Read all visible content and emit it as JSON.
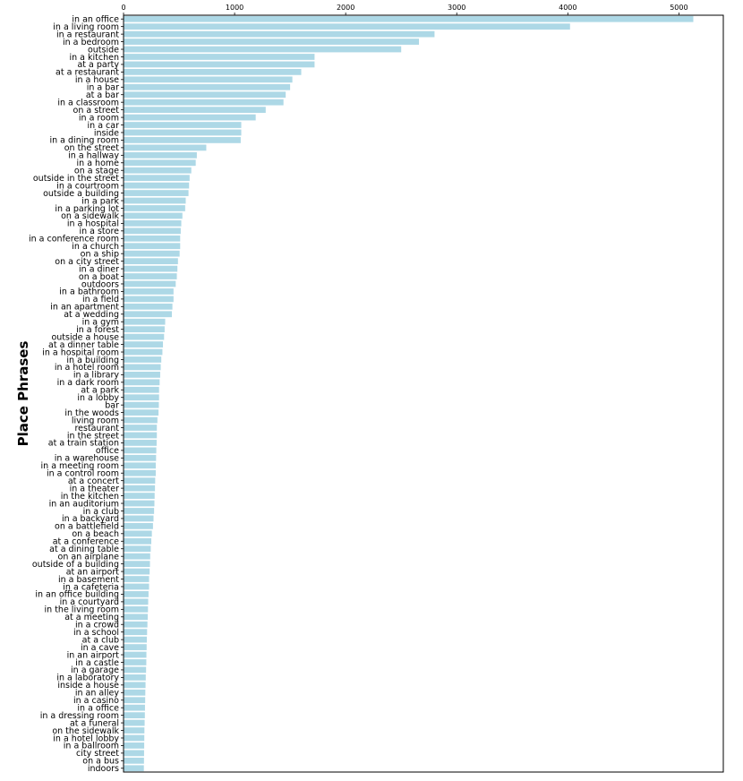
{
  "chart_data": {
    "type": "bar",
    "orientation": "horizontal",
    "title": "",
    "xlabel": "",
    "ylabel": "Place Phrases",
    "xlim": [
      0,
      5400
    ],
    "xticks": [
      0,
      1000,
      2000,
      3000,
      4000,
      5000
    ],
    "x_axis_position": "top",
    "grid": false,
    "bar_color": "#add8e6",
    "categories": [
      "in an office",
      "in a living room",
      "in a restaurant",
      "in a bedroom",
      "outside",
      "in a kitchen",
      "at a party",
      "at a restaurant",
      "in a house",
      "in a bar",
      "at a bar",
      "in a classroom",
      "on a street",
      "in a room",
      "in a car",
      "inside",
      "in a dining room",
      "on the street",
      "in a hallway",
      "in a home",
      "on a stage",
      "outside in the street",
      "in a courtroom",
      "outside a building",
      "in a park",
      "in a parking lot",
      "on a sidewalk",
      "in a hospital",
      "in a store",
      "in a conference room",
      "in a church",
      "on a ship",
      "on a city street",
      "in a diner",
      "on a boat",
      "outdoors",
      "in a bathroom",
      "in a field",
      "in an apartment",
      "at a wedding",
      "in a gym",
      "in a forest",
      "outside a house",
      "at a dinner table",
      "in a hospital room",
      "in a building",
      "in a hotel room",
      "in a library",
      "in a dark room",
      "at a park",
      "in a lobby",
      "bar",
      "in the woods",
      "living room",
      "restaurant",
      "in the street",
      "at a train station",
      "office",
      "in a warehouse",
      "in a meeting room",
      "in a control room",
      "at a concert",
      "in a theater",
      "in the kitchen",
      "in an auditorium",
      "in a club",
      "in a backyard",
      "on a battlefield",
      "on a beach",
      "at a conference",
      "at a dining table",
      "on an airplane",
      "outside of a building",
      "at an airport",
      "in a basement",
      "in a cafeteria",
      "in an office building",
      "in a courtyard",
      "in the living room",
      "at a meeting",
      "in a crowd",
      "in a school",
      "at a club",
      "in a cave",
      "in an airport",
      "in a castle",
      "in a garage",
      "in a laboratory",
      "inside a house",
      "in an alley",
      "in a casino",
      "in a office",
      "in a dressing room",
      "at a funeral",
      "on the sidewalk",
      "in a hotel lobby",
      "in a ballroom",
      "city street",
      "on a bus",
      "indoors"
    ],
    "values": [
      5130,
      4020,
      2800,
      2660,
      2500,
      1720,
      1720,
      1600,
      1520,
      1500,
      1460,
      1440,
      1280,
      1190,
      1060,
      1060,
      1055,
      745,
      660,
      650,
      610,
      595,
      590,
      585,
      560,
      555,
      530,
      520,
      515,
      510,
      510,
      505,
      490,
      485,
      480,
      470,
      450,
      450,
      440,
      435,
      375,
      370,
      365,
      355,
      350,
      340,
      335,
      330,
      325,
      320,
      320,
      318,
      315,
      305,
      300,
      300,
      298,
      295,
      293,
      290,
      290,
      285,
      283,
      280,
      278,
      275,
      270,
      265,
      255,
      250,
      245,
      240,
      238,
      235,
      230,
      230,
      225,
      222,
      220,
      218,
      215,
      212,
      210,
      208,
      206,
      205,
      203,
      200,
      198,
      196,
      195,
      193,
      192,
      190,
      188,
      187,
      186,
      185,
      184,
      183
    ]
  }
}
